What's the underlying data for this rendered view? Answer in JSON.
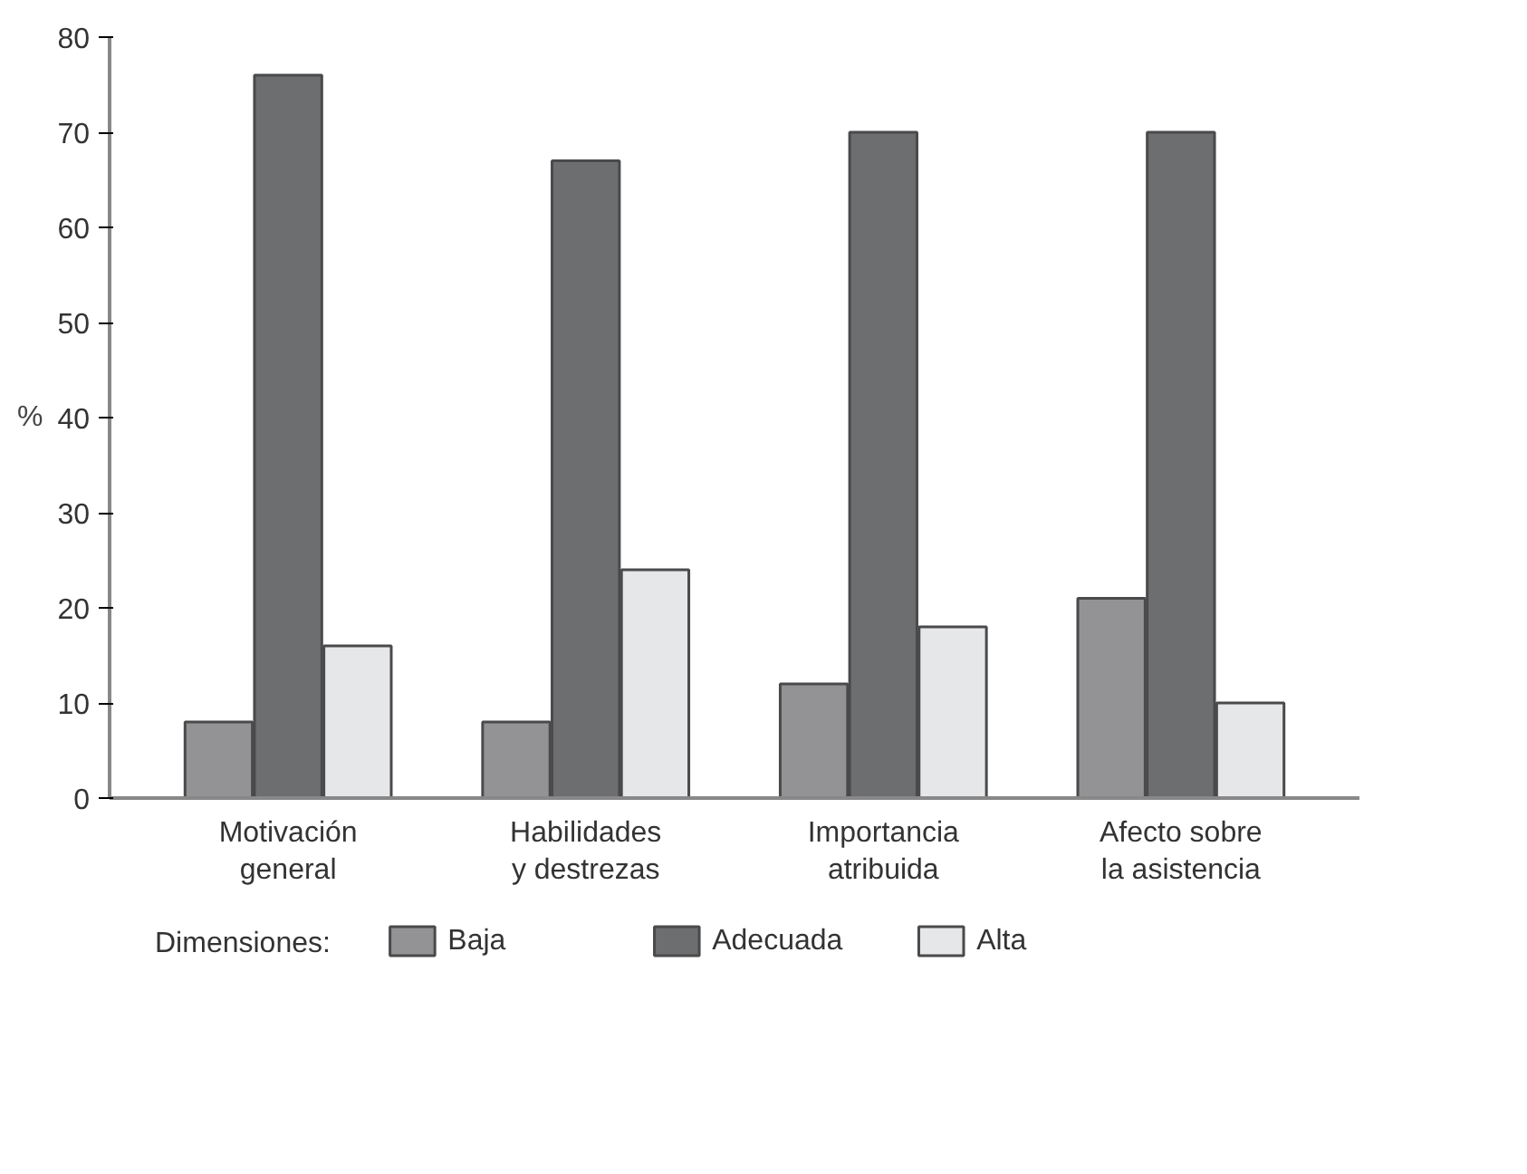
{
  "chart_data": {
    "type": "bar",
    "categories": [
      "Motivación general",
      "Habilidades y destrezas",
      "Importancia atribuida",
      "Afecto sobre la asistencia"
    ],
    "series": [
      {
        "name": "Baja",
        "color": "#939396",
        "values": [
          8,
          8,
          12,
          21
        ]
      },
      {
        "name": "Adecuada",
        "color": "#6d6e70",
        "values": [
          76,
          67,
          70,
          70
        ]
      },
      {
        "name": "Alta",
        "color": "#e6e7e8",
        "values": [
          16,
          24,
          18,
          10
        ]
      }
    ],
    "ylabel": "%",
    "legend_title": "Dimensiones:",
    "ylim": [
      0,
      80
    ],
    "yticks": [
      0,
      10,
      20,
      30,
      40,
      50,
      60,
      70,
      80
    ],
    "grid": false,
    "legend": "bottom"
  }
}
